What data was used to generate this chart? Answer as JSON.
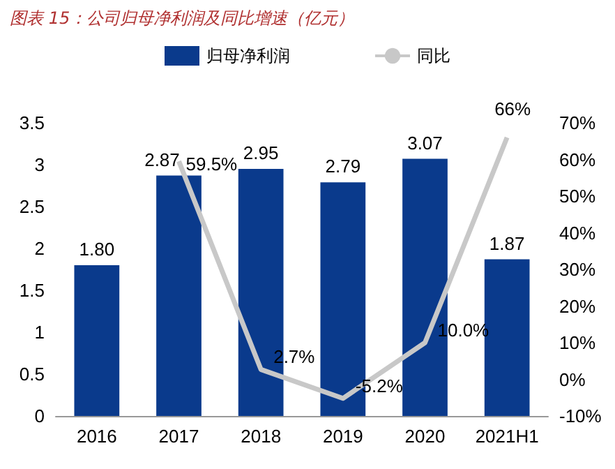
{
  "chart_data": {
    "type": "bar",
    "title": "图表 15：公司归母净利润及同比增速（亿元）",
    "categories": [
      "2016",
      "2017",
      "2018",
      "2019",
      "2020",
      "2021H1"
    ],
    "series": [
      {
        "name": "归母净利润",
        "type": "bar",
        "color": "#0a3a8c",
        "values": [
          1.8,
          2.87,
          2.95,
          2.79,
          3.07,
          1.87
        ],
        "value_labels": [
          "1.80",
          "2.87",
          "2.95",
          "2.79",
          "3.07",
          "1.87"
        ]
      },
      {
        "name": "同比",
        "type": "line",
        "axis": "y2",
        "color": "#c8c8c8",
        "values": [
          null,
          59.5,
          2.7,
          -5.2,
          10.0,
          66
        ],
        "value_labels": [
          null,
          "59.5%",
          "2.7%",
          "-5.2%",
          "10.0%",
          "66%"
        ]
      }
    ],
    "ylim": [
      0,
      3.5
    ],
    "yticks": [
      0,
      0.5,
      1,
      1.5,
      2,
      2.5,
      3,
      3.5
    ],
    "y2lim": [
      -10,
      70
    ],
    "y2ticks": [
      {
        "value": -10,
        "label": "-10%"
      },
      {
        "value": 0,
        "label": "0%"
      },
      {
        "value": 10,
        "label": "10%"
      },
      {
        "value": 20,
        "label": "20%"
      },
      {
        "value": 30,
        "label": "30%"
      },
      {
        "value": 40,
        "label": "40%"
      },
      {
        "value": 50,
        "label": "50%"
      },
      {
        "value": 60,
        "label": "60%"
      },
      {
        "value": 70,
        "label": "70%"
      }
    ],
    "grid": false,
    "legend": "top",
    "marker": "none",
    "line_style": "solid"
  }
}
